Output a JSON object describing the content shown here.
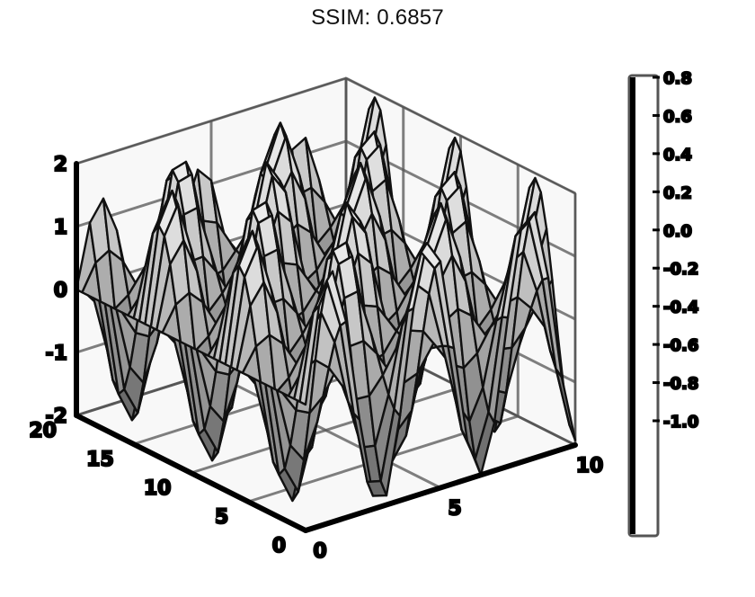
{
  "title": "SSIM: 0.6857",
  "chart_data": {
    "type": "surface",
    "colormap": "gray",
    "x": {
      "ticks": [
        0,
        5,
        10
      ],
      "lim": [
        0,
        10
      ]
    },
    "y": {
      "ticks": [
        0,
        5,
        10,
        15,
        20
      ],
      "lim": [
        0,
        20
      ]
    },
    "z": {
      "ticks": [
        -2,
        -1,
        0,
        1,
        2
      ],
      "lim": [
        -2,
        2
      ]
    },
    "surface": {
      "z_formula": "2*sin(1.7*x)*cos(0.9*y)",
      "x_samples": 21,
      "y_samples": 41
    },
    "colorbar": {
      "ticks": [
        -1.0,
        -0.8,
        -0.6,
        -0.4,
        -0.2,
        0.0,
        0.2,
        0.4,
        0.6,
        0.8
      ],
      "labels": [
        "-1.0",
        "-0.8",
        "-0.6",
        "-0.4",
        "-0.2",
        "0.0",
        "0.2",
        "0.4",
        "0.6",
        "0.8"
      ]
    },
    "grid": true,
    "legend": "none"
  }
}
